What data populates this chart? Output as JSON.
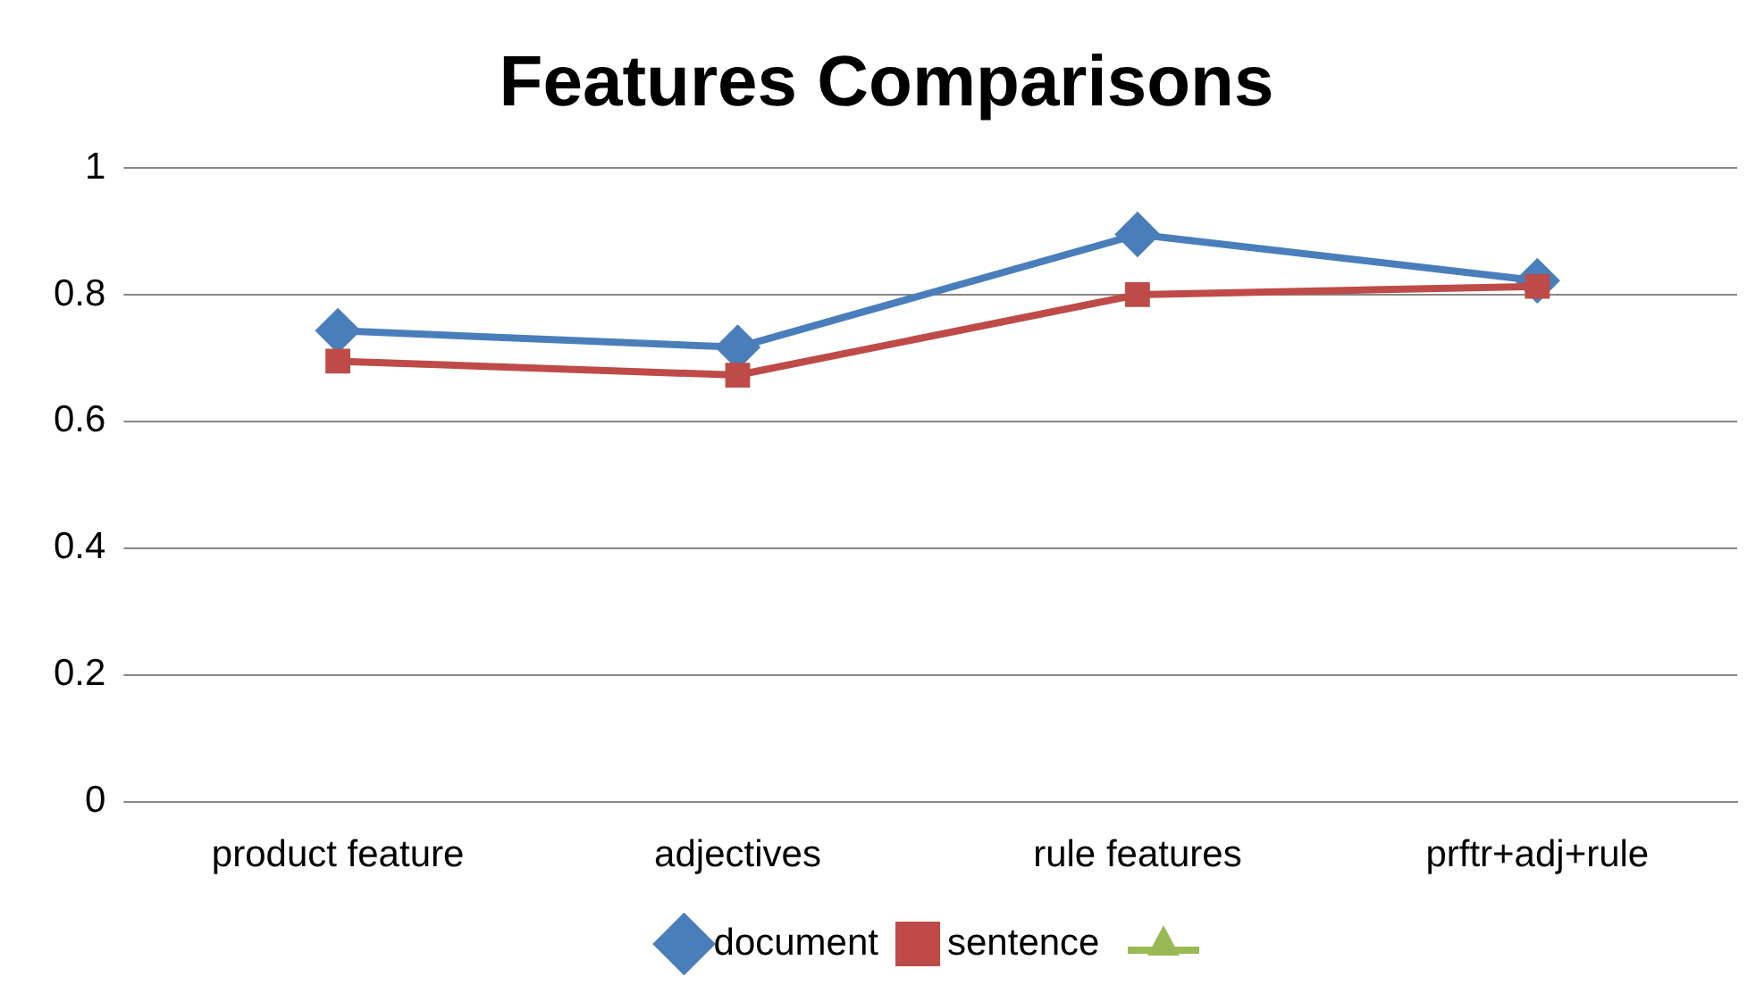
{
  "chart_data": {
    "type": "line",
    "title": "Features Comparisons",
    "categories": [
      "product feature",
      "adjectives",
      "rule features",
      "prftr+adj+rule"
    ],
    "series": [
      {
        "name": "document",
        "color": "#4a7ebb",
        "marker": "diamond",
        "values": [
          0.743,
          0.717,
          0.895,
          0.822
        ]
      },
      {
        "name": "sentence",
        "color": "#be4b48",
        "marker": "square",
        "values": [
          0.695,
          0.673,
          0.8,
          0.813
        ]
      }
    ],
    "ylim": [
      0,
      1
    ],
    "yticks": [
      0,
      0.2,
      0.4,
      0.6,
      0.8,
      1
    ],
    "grid": "y",
    "legend": "bottom",
    "line_style": "solid"
  }
}
